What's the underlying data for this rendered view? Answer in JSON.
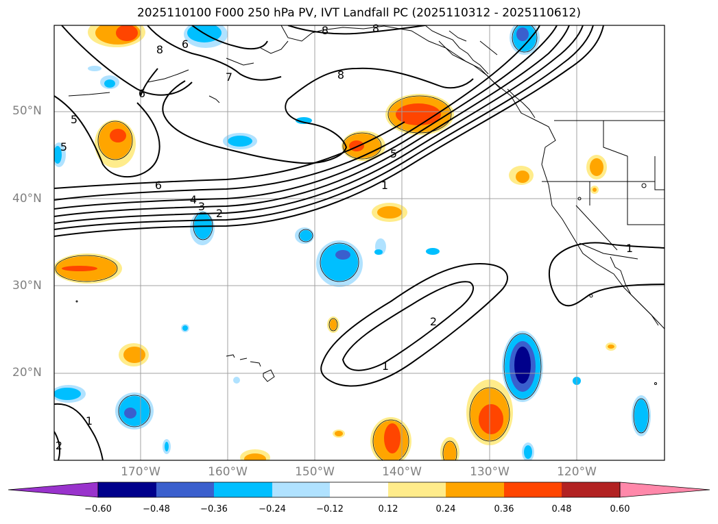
{
  "title": "2025110100 F000 250 hPa PV, IVT Landfall PC (2025110312 - 2025110612)",
  "lat_labels": [
    "50°N",
    "40°N",
    "30°N",
    "20°N"
  ],
  "lon_labels": [
    "170°W",
    "160°W",
    "150°W",
    "140°W",
    "130°W",
    "120°W"
  ],
  "contour_labels": [
    "8",
    "8",
    "8",
    "6",
    "7",
    "8",
    "6",
    "5",
    "5",
    "6",
    "4",
    "3",
    "2",
    "5",
    "1",
    "2",
    "1",
    "1",
    "1",
    "2"
  ],
  "colorbar": {
    "ticks": [
      "−0.60",
      "−0.48",
      "−0.36",
      "−0.24",
      "−0.12",
      "0.12",
      "0.24",
      "0.36",
      "0.48",
      "0.60"
    ],
    "colors": [
      "#9933cc",
      "#00008b",
      "#3a5fcd",
      "#00bfff",
      "#b0e2ff",
      "#ffffff",
      "#ffec8b",
      "#ffa500",
      "#ff4500",
      "#b22222",
      "#ff88aa"
    ]
  },
  "legend_colors": {
    "neg_light": "#b0e2ff",
    "neg_mid": "#00bfff",
    "neg_strong": "#3a5fcd",
    "neg_max": "#00008b",
    "pos_light": "#ffec8b",
    "pos_mid": "#ffa500",
    "pos_strong": "#ff4500"
  }
}
